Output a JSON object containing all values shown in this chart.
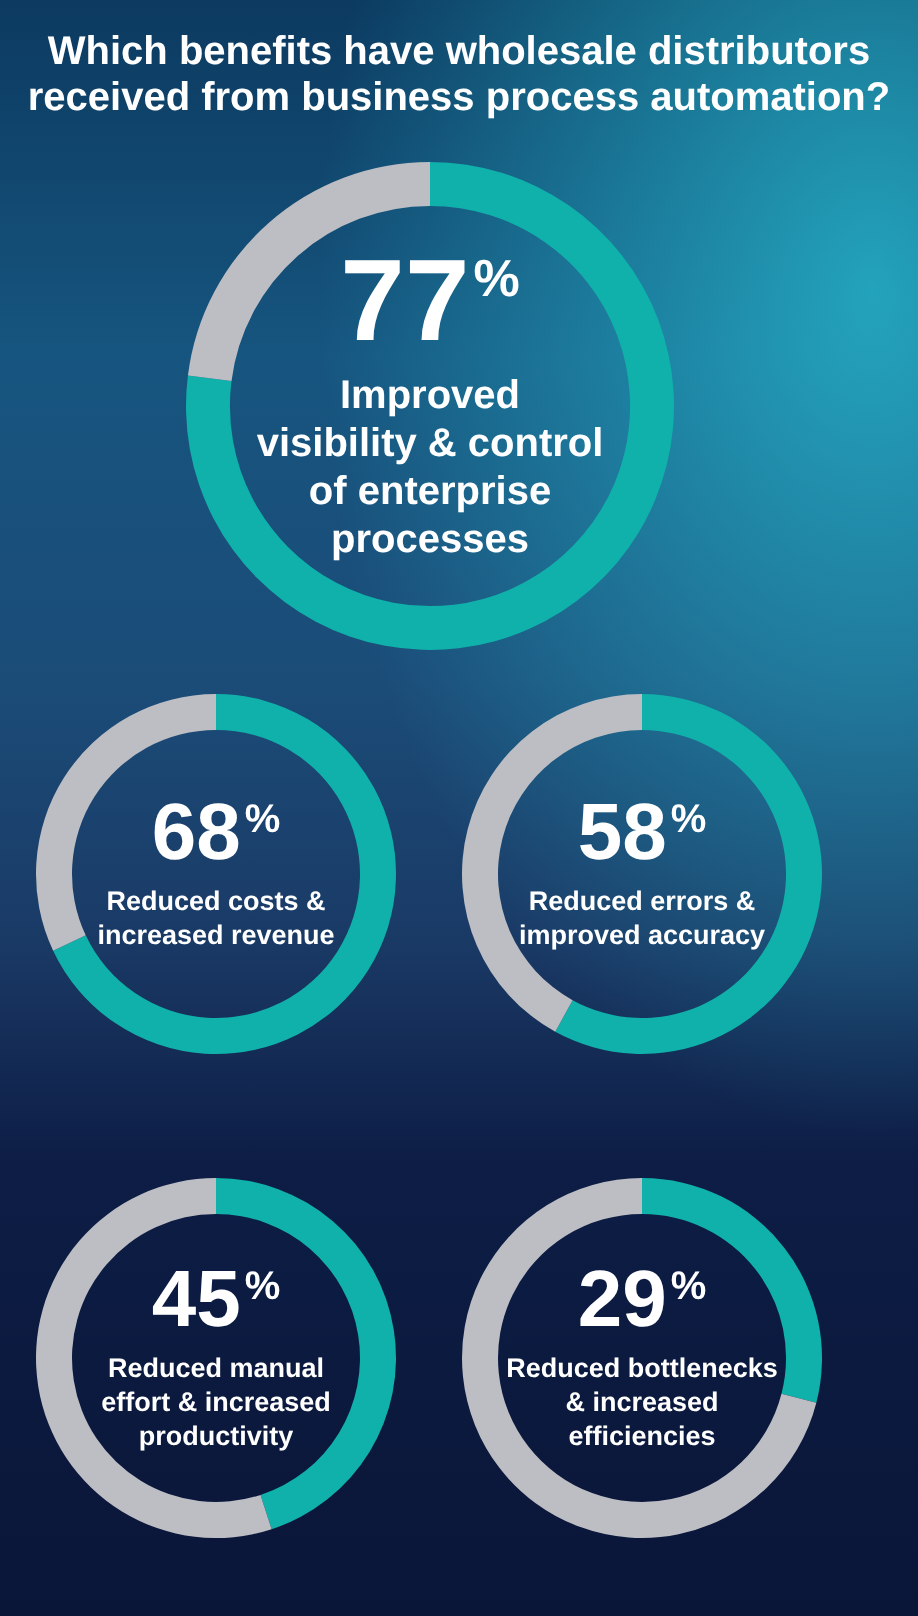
{
  "chart_data": [
    {
      "type": "donut",
      "title": "Which benefits have wholesale distributors received from business process automation?",
      "categories": [
        "Improved visibility & control of enterprise processes",
        null
      ],
      "values": [
        77,
        23
      ],
      "colors": [
        "#10b1aa",
        "#bdbec3"
      ],
      "value_labels": [
        "77%",
        null
      ]
    },
    {
      "type": "donut",
      "categories": [
        "Reduced costs & increased revenue",
        null
      ],
      "values": [
        68,
        32
      ],
      "colors": [
        "#10b1aa",
        "#bdbec3"
      ],
      "value_labels": [
        "68%",
        null
      ]
    },
    {
      "type": "donut",
      "categories": [
        "Reduced errors & improved accuracy",
        null
      ],
      "values": [
        58,
        42
      ],
      "colors": [
        "#10b1aa",
        "#bdbec3"
      ],
      "value_labels": [
        "58%",
        null
      ]
    },
    {
      "type": "donut",
      "categories": [
        "Reduced manual effort & increased productivity",
        null
      ],
      "values": [
        45,
        55
      ],
      "colors": [
        "#10b1aa",
        "#bdbec3"
      ],
      "value_labels": [
        "45%",
        null
      ]
    },
    {
      "type": "donut",
      "categories": [
        "Reduced bottlenecks & increased efficiencies",
        null
      ],
      "values": [
        29,
        71
      ],
      "colors": [
        "#10b1aa",
        "#bdbec3"
      ],
      "value_labels": [
        "29%",
        null
      ]
    }
  ]
}
